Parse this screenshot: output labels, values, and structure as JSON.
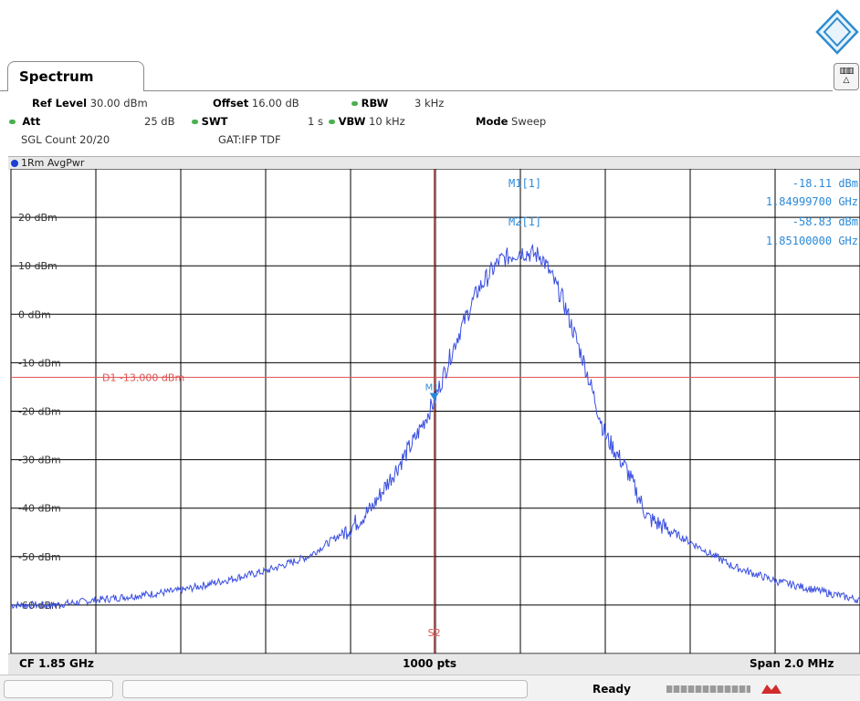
{
  "window": {
    "tab_label": "Spectrum"
  },
  "header": {
    "row1": {
      "ref_level_label": "Ref Level",
      "ref_level_value": "30.00 dBm",
      "offset_label": "Offset",
      "offset_value": "16.00 dB",
      "rbw_label": "RBW",
      "rbw_value": "3 kHz"
    },
    "row2": {
      "att_label": "Att",
      "att_value": "25 dB",
      "swt_label": "SWT",
      "swt_value": "1 s",
      "vbw_label": "VBW",
      "vbw_value": "10 kHz",
      "mode_label": "Mode",
      "mode_value": "Sweep"
    },
    "row3": {
      "count": "SGL Count 20/20",
      "gat": "GAT:IFP TDF"
    }
  },
  "trace": {
    "label": "1Rm AvgPwr"
  },
  "markers": {
    "m1_label": "M1[1]",
    "m1_level": "-18.11 dBm",
    "m1_freq": "1.84999700 GHz",
    "m2_label": "M2[1]",
    "m2_level": "-58.83 dBm",
    "m2_freq": "1.85100000 GHz",
    "m1_tag": "M1",
    "s2_tag": "S2",
    "d1_label": "D1 -13.000 dBm"
  },
  "footer": {
    "cf": "CF 1.85 GHz",
    "pts": "1000 pts",
    "span": "Span 2.0 MHz"
  },
  "status": {
    "ready": "Ready"
  },
  "colors": {
    "trace": "#3a4fe0",
    "display_line": "#e05050",
    "marker_text": "#2b8ad8",
    "grid": "#000000"
  },
  "chart_data": {
    "type": "line",
    "ytick_labels": [
      "20 dBm",
      "10 dBm",
      "0 dBm",
      "-10 dBm",
      "-20 dBm",
      "-30 dBm",
      "-40 dBm",
      "-50 dBm",
      "-60 dBm"
    ],
    "ylim": [
      -70,
      30
    ],
    "xlim": [
      1.849,
      1.851
    ],
    "xunit": "GHz",
    "display_line_dbm": -13.0,
    "series": [
      {
        "x": [
          1.849,
          1.8491,
          1.8492,
          1.8493,
          1.8494,
          1.8495,
          1.8496,
          1.8497,
          1.8498,
          1.84985,
          1.8499,
          1.84995,
          1.849997,
          1.85005,
          1.8501,
          1.85015,
          1.8502,
          1.85025,
          1.8503,
          1.85035,
          1.8504,
          1.85045,
          1.8505,
          1.8506,
          1.8507,
          1.8508,
          1.8509,
          1.851
        ],
        "values": [
          -60,
          -60,
          -59,
          -58,
          -57,
          -55,
          -53,
          -50,
          -44,
          -40,
          -33,
          -26,
          -18,
          -5,
          5,
          11,
          13,
          12,
          3,
          -10,
          -25,
          -32,
          -42,
          -47,
          -52,
          -55,
          -57,
          -59
        ]
      }
    ]
  }
}
